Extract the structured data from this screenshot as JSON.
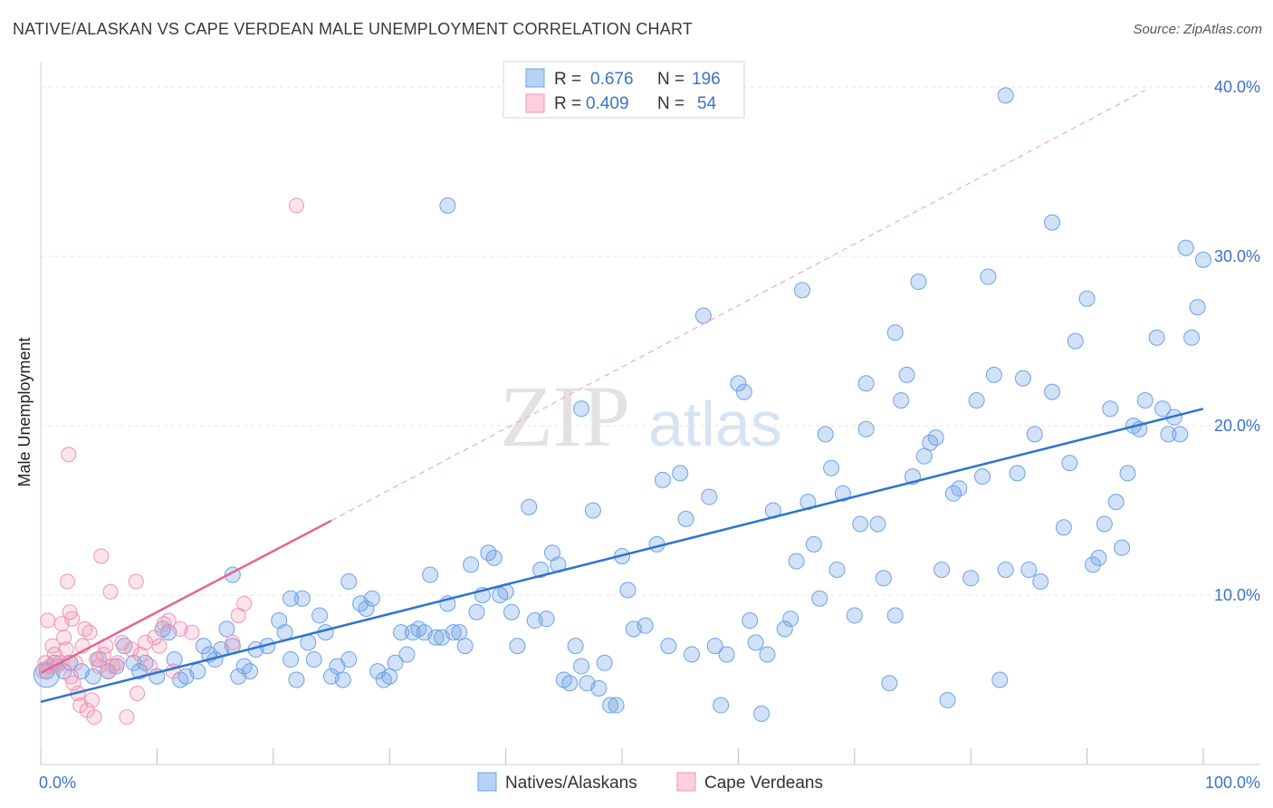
{
  "title": "NATIVE/ALASKAN VS CAPE VERDEAN MALE UNEMPLOYMENT CORRELATION CHART",
  "source": "Source: ZipAtlas.com",
  "watermark": {
    "zip": "ZIP",
    "atlas": "atlas"
  },
  "legend_top": [
    {
      "r_label": "R =",
      "r_value": "0.676",
      "n_label": "N =",
      "n_value": "196",
      "color": "#6fa3e6"
    },
    {
      "r_label": "R =",
      "r_value": "0.409",
      "n_label": "N =",
      "n_value": "54",
      "color": "#f093b0"
    }
  ],
  "legend_bottom": [
    {
      "label": "Natives/Alaskans",
      "color": "#6fa3e6"
    },
    {
      "label": "Cape Verdeans",
      "color": "#f093b0"
    }
  ],
  "chart_data": {
    "type": "scatter",
    "ylabel": "Male Unemployment",
    "xlabel": "",
    "x_tick_labels": [
      "0.0%",
      "100.0%"
    ],
    "y_tick_labels": [
      "10.0%",
      "20.0%",
      "30.0%",
      "40.0%"
    ],
    "xlim": [
      0,
      100
    ],
    "ylim": [
      0,
      40
    ],
    "grid": true,
    "series": [
      {
        "name": "Natives/Alaskans",
        "color": "#6fa3e6",
        "trend": {
          "x": [
            0,
            100
          ],
          "y": [
            3.7,
            21.0
          ],
          "style": "solid"
        },
        "points": [
          [
            0.5,
            5.5
          ],
          [
            1.2,
            6.0
          ],
          [
            2.0,
            5.5
          ],
          [
            2.5,
            6.0
          ],
          [
            3.5,
            5.5
          ],
          [
            4.5,
            5.2
          ],
          [
            5.0,
            6.2
          ],
          [
            5.8,
            5.5
          ],
          [
            6.5,
            5.8
          ],
          [
            7.2,
            7.0
          ],
          [
            8.0,
            6.0
          ],
          [
            8.5,
            5.5
          ],
          [
            9.0,
            6.0
          ],
          [
            10.0,
            5.2
          ],
          [
            10.5,
            8.0
          ],
          [
            11.0,
            7.8
          ],
          [
            11.5,
            6.2
          ],
          [
            12.0,
            5.0
          ],
          [
            12.5,
            5.2
          ],
          [
            13.5,
            5.5
          ],
          [
            14.0,
            7.0
          ],
          [
            14.5,
            6.5
          ],
          [
            15.0,
            6.2
          ],
          [
            15.5,
            6.8
          ],
          [
            16.0,
            8.0
          ],
          [
            16.5,
            7.0
          ],
          [
            17.0,
            5.2
          ],
          [
            17.5,
            5.8
          ],
          [
            18.0,
            5.5
          ],
          [
            18.5,
            6.8
          ],
          [
            16.5,
            11.2
          ],
          [
            19.5,
            7.0
          ],
          [
            20.5,
            8.5
          ],
          [
            21.0,
            7.8
          ],
          [
            21.5,
            9.8
          ],
          [
            21.5,
            6.2
          ],
          [
            22.0,
            5.0
          ],
          [
            22.5,
            9.8
          ],
          [
            23.0,
            7.2
          ],
          [
            23.5,
            6.2
          ],
          [
            24.0,
            8.8
          ],
          [
            24.5,
            7.8
          ],
          [
            25.0,
            5.2
          ],
          [
            25.5,
            5.8
          ],
          [
            26.0,
            5.0
          ],
          [
            26.5,
            10.8
          ],
          [
            26.5,
            6.2
          ],
          [
            27.5,
            9.5
          ],
          [
            28.0,
            9.2
          ],
          [
            28.5,
            9.8
          ],
          [
            29.0,
            5.5
          ],
          [
            29.5,
            5.0
          ],
          [
            30.0,
            5.2
          ],
          [
            30.5,
            6.0
          ],
          [
            31.0,
            7.8
          ],
          [
            31.5,
            6.5
          ],
          [
            32.0,
            7.8
          ],
          [
            32.5,
            8.0
          ],
          [
            33.0,
            7.8
          ],
          [
            33.5,
            11.2
          ],
          [
            34.0,
            7.5
          ],
          [
            34.5,
            7.5
          ],
          [
            35.0,
            9.5
          ],
          [
            35.5,
            7.8
          ],
          [
            36.0,
            7.8
          ],
          [
            36.5,
            7.0
          ],
          [
            37.0,
            11.8
          ],
          [
            37.5,
            9.0
          ],
          [
            38.0,
            10.0
          ],
          [
            38.5,
            12.5
          ],
          [
            39.0,
            12.2
          ],
          [
            39.5,
            10.0
          ],
          [
            40.0,
            10.2
          ],
          [
            40.5,
            9.0
          ],
          [
            41.0,
            7.0
          ],
          [
            42.0,
            15.2
          ],
          [
            42.5,
            8.5
          ],
          [
            43.0,
            11.5
          ],
          [
            43.5,
            8.6
          ],
          [
            44.0,
            12.5
          ],
          [
            44.5,
            11.8
          ],
          [
            45.0,
            5.0
          ],
          [
            45.5,
            4.8
          ],
          [
            46.0,
            7.0
          ],
          [
            46.5,
            5.8
          ],
          [
            47.0,
            4.8
          ],
          [
            47.5,
            15.0
          ],
          [
            48.0,
            4.5
          ],
          [
            48.5,
            6.0
          ],
          [
            49.0,
            3.5
          ],
          [
            49.5,
            3.5
          ],
          [
            50.0,
            12.3
          ],
          [
            50.5,
            10.3
          ],
          [
            51.0,
            8.0
          ],
          [
            52.0,
            8.2
          ],
          [
            53.0,
            13.0
          ],
          [
            53.5,
            16.8
          ],
          [
            54.0,
            7.0
          ],
          [
            55.0,
            17.2
          ],
          [
            55.5,
            14.5
          ],
          [
            56.0,
            6.5
          ],
          [
            57.0,
            26.5
          ],
          [
            57.5,
            15.8
          ],
          [
            58.0,
            7.0
          ],
          [
            58.5,
            3.5
          ],
          [
            59.0,
            6.5
          ],
          [
            60.0,
            22.5
          ],
          [
            60.5,
            22.0
          ],
          [
            61.0,
            8.5
          ],
          [
            61.5,
            7.2
          ],
          [
            62.0,
            3.0
          ],
          [
            62.5,
            6.5
          ],
          [
            63.0,
            15.0
          ],
          [
            64.0,
            8.0
          ],
          [
            64.5,
            8.6
          ],
          [
            65.0,
            12.0
          ],
          [
            65.5,
            28.0
          ],
          [
            66.0,
            15.5
          ],
          [
            66.5,
            13.0
          ],
          [
            67.0,
            9.8
          ],
          [
            67.5,
            19.5
          ],
          [
            68.0,
            17.5
          ],
          [
            68.5,
            11.5
          ],
          [
            69.0,
            16.0
          ],
          [
            70.0,
            8.8
          ],
          [
            70.5,
            14.2
          ],
          [
            71.0,
            22.5
          ],
          [
            71.0,
            19.8
          ],
          [
            72.0,
            14.2
          ],
          [
            72.5,
            11.0
          ],
          [
            73.0,
            4.8
          ],
          [
            73.5,
            25.5
          ],
          [
            73.5,
            8.8
          ],
          [
            74.0,
            21.5
          ],
          [
            74.5,
            23.0
          ],
          [
            75.0,
            17.0
          ],
          [
            75.5,
            28.5
          ],
          [
            76.0,
            18.2
          ],
          [
            76.5,
            19.0
          ],
          [
            77.0,
            19.3
          ],
          [
            77.5,
            11.5
          ],
          [
            78.0,
            3.8
          ],
          [
            78.5,
            16.0
          ],
          [
            79.0,
            16.3
          ],
          [
            80.0,
            11.0
          ],
          [
            80.5,
            21.5
          ],
          [
            81.0,
            17.0
          ],
          [
            81.5,
            28.8
          ],
          [
            82.0,
            23.0
          ],
          [
            82.5,
            5.0
          ],
          [
            83.0,
            11.5
          ],
          [
            84.0,
            17.2
          ],
          [
            84.5,
            22.8
          ],
          [
            85.0,
            11.5
          ],
          [
            85.5,
            19.5
          ],
          [
            86.0,
            10.8
          ],
          [
            87.0,
            22.0
          ],
          [
            87.0,
            32.0
          ],
          [
            88.0,
            14.0
          ],
          [
            88.5,
            17.8
          ],
          [
            89.0,
            25.0
          ],
          [
            90.0,
            27.5
          ],
          [
            90.5,
            11.8
          ],
          [
            91.0,
            12.2
          ],
          [
            91.5,
            14.2
          ],
          [
            92.0,
            21.0
          ],
          [
            92.5,
            15.5
          ],
          [
            93.0,
            12.8
          ],
          [
            93.5,
            17.2
          ],
          [
            94.0,
            20.0
          ],
          [
            94.5,
            19.8
          ],
          [
            95.0,
            21.5
          ],
          [
            96.0,
            25.2
          ],
          [
            96.5,
            21.0
          ],
          [
            97.0,
            19.5
          ],
          [
            97.5,
            20.5
          ],
          [
            98.0,
            19.5
          ],
          [
            98.5,
            30.5
          ],
          [
            99.0,
            25.2
          ],
          [
            99.5,
            27.0
          ],
          [
            100.0,
            29.8
          ],
          [
            35.0,
            33.0
          ],
          [
            83.0,
            39.5
          ],
          [
            46.5,
            21.0
          ]
        ]
      },
      {
        "name": "Cape Verdeans",
        "color": "#f093b0",
        "trend": {
          "x": [
            0,
            25
          ],
          "y": [
            5.4,
            14.4
          ],
          "style": "solid",
          "extension": {
            "x": [
              25,
              95
            ],
            "y": [
              14.4,
              39.8
            ],
            "style": "dashed"
          }
        },
        "points": [
          [
            0.2,
            5.5
          ],
          [
            0.4,
            6.0
          ],
          [
            0.6,
            8.5
          ],
          [
            0.8,
            5.8
          ],
          [
            1.0,
            7.0
          ],
          [
            1.2,
            6.5
          ],
          [
            1.4,
            5.8
          ],
          [
            1.6,
            6.0
          ],
          [
            1.8,
            8.3
          ],
          [
            2.0,
            7.5
          ],
          [
            2.2,
            6.8
          ],
          [
            2.3,
            10.8
          ],
          [
            2.4,
            18.3
          ],
          [
            2.5,
            9.0
          ],
          [
            2.6,
            5.2
          ],
          [
            2.7,
            8.6
          ],
          [
            2.8,
            4.8
          ],
          [
            3.0,
            6.0
          ],
          [
            3.2,
            4.2
          ],
          [
            3.4,
            3.5
          ],
          [
            3.6,
            7.0
          ],
          [
            3.8,
            8.0
          ],
          [
            4.0,
            3.2
          ],
          [
            4.2,
            7.8
          ],
          [
            4.4,
            3.8
          ],
          [
            4.6,
            2.8
          ],
          [
            4.8,
            6.2
          ],
          [
            5.0,
            5.8
          ],
          [
            5.2,
            12.3
          ],
          [
            5.4,
            6.5
          ],
          [
            5.6,
            7.0
          ],
          [
            5.8,
            5.5
          ],
          [
            6.0,
            10.2
          ],
          [
            6.2,
            5.8
          ],
          [
            6.6,
            6.0
          ],
          [
            7.0,
            7.2
          ],
          [
            7.4,
            2.8
          ],
          [
            7.8,
            6.8
          ],
          [
            8.2,
            10.8
          ],
          [
            8.3,
            4.2
          ],
          [
            8.6,
            6.5
          ],
          [
            9.0,
            7.2
          ],
          [
            9.4,
            5.8
          ],
          [
            9.8,
            7.5
          ],
          [
            10.2,
            7.0
          ],
          [
            10.6,
            8.3
          ],
          [
            11.0,
            8.5
          ],
          [
            11.4,
            5.5
          ],
          [
            12.0,
            8.0
          ],
          [
            13.0,
            7.8
          ],
          [
            17.0,
            8.8
          ],
          [
            17.5,
            9.5
          ],
          [
            16.5,
            7.2
          ],
          [
            22.0,
            33.0
          ]
        ]
      }
    ]
  }
}
